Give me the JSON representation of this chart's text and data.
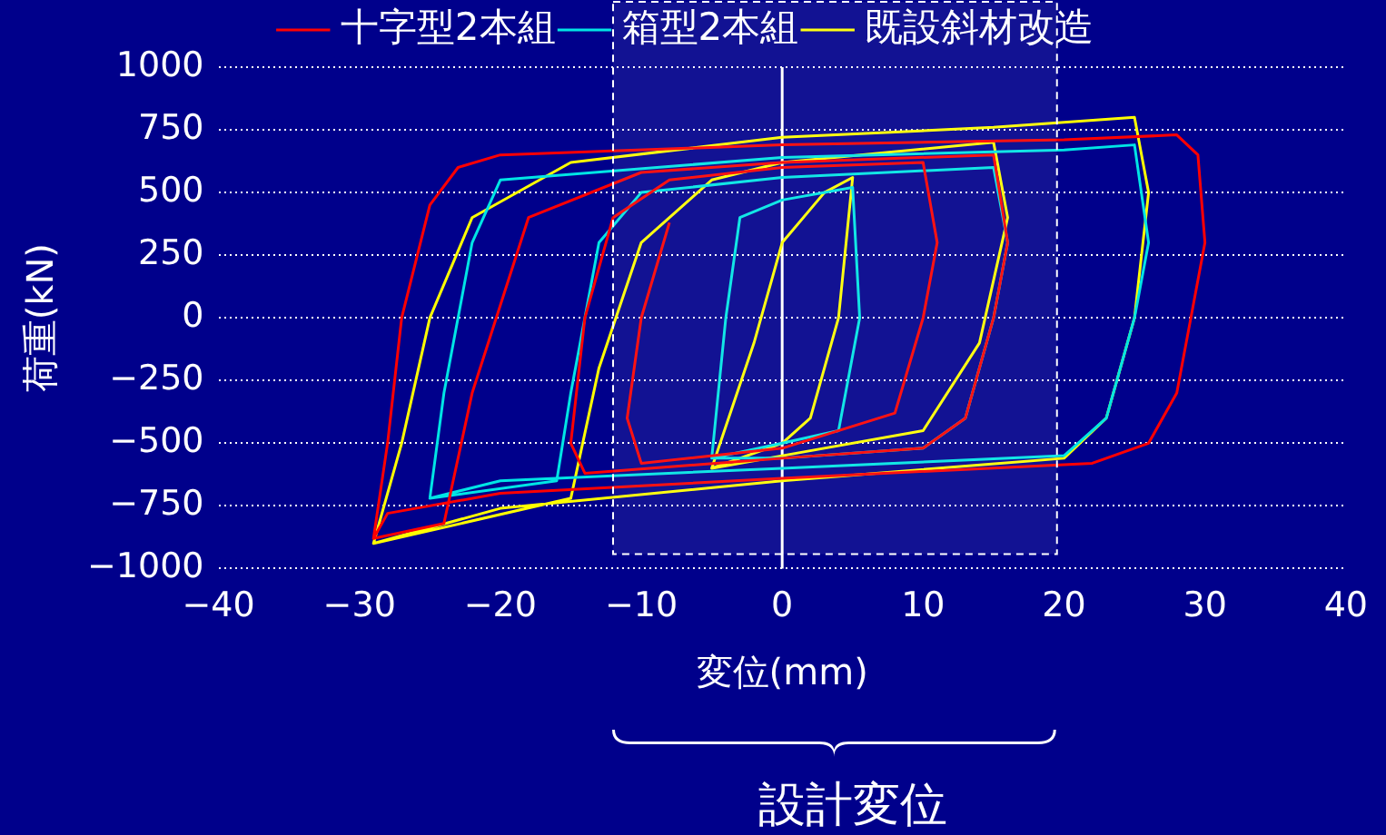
{
  "chart_data": {
    "type": "line",
    "xlabel": "変位(mm)",
    "ylabel": "荷重(kN)",
    "xlim": [
      -40,
      40
    ],
    "xticks": [
      -40,
      -30,
      -20,
      -10,
      0,
      10,
      20,
      30,
      40
    ],
    "ylim": [
      -1000,
      1000
    ],
    "yticks": [
      -1000,
      -750,
      -500,
      -250,
      0,
      250,
      500,
      750,
      1000
    ],
    "grid": "y",
    "legend": "top",
    "marker": "none",
    "line_style": "solid",
    "ref_lines": [
      {
        "axis": "x",
        "value": 0,
        "color": "#ffffff"
      }
    ],
    "bands": [
      {
        "axis": "x",
        "from": -12,
        "to": 19.5,
        "color": "#ffffff"
      }
    ],
    "annotations": [
      "設計変位"
    ],
    "series": [
      {
        "name": "十字型2本組",
        "color": "#ff0000",
        "x": [
          -29,
          -28,
          -27,
          -25,
          -23,
          -20,
          0,
          20,
          28,
          29.5,
          30,
          29,
          28,
          26,
          22,
          0,
          -20,
          -28,
          -29,
          -24,
          -22,
          -18,
          -10,
          0,
          15,
          16,
          15,
          13,
          10,
          0,
          -14,
          -15,
          -14,
          -12,
          -8,
          0,
          10,
          11,
          10,
          8,
          0,
          -10,
          -11,
          -10,
          -8
        ],
        "values": [
          -880,
          -500,
          0,
          450,
          600,
          650,
          690,
          710,
          730,
          650,
          300,
          0,
          -300,
          -500,
          -580,
          -640,
          -700,
          -780,
          -880,
          -820,
          -300,
          400,
          580,
          620,
          650,
          300,
          0,
          -400,
          -520,
          -560,
          -620,
          -500,
          0,
          400,
          550,
          600,
          620,
          300,
          0,
          -380,
          -520,
          -580,
          -400,
          0,
          380
        ]
      },
      {
        "name": "箱型2本組",
        "color": "#00e5e5",
        "x": [
          -25,
          -24,
          -22,
          -20,
          0,
          20,
          25,
          26,
          25,
          23,
          20,
          0,
          -20,
          -25,
          -16,
          -15,
          -13,
          -10,
          0,
          15,
          16,
          15,
          13,
          10,
          0,
          -5,
          -4,
          -3,
          0,
          5,
          5.5,
          4,
          0,
          -5
        ],
        "values": [
          -720,
          -300,
          300,
          550,
          640,
          670,
          690,
          300,
          0,
          -400,
          -550,
          -600,
          -650,
          -720,
          -650,
          -300,
          300,
          500,
          560,
          600,
          300,
          0,
          -400,
          -520,
          -560,
          -560,
          0,
          400,
          470,
          520,
          0,
          -450,
          -500,
          -560
        ]
      },
      {
        "name": "既設斜材改造",
        "color": "#ffff00",
        "x": [
          -29,
          -27,
          -25,
          -22,
          -15,
          0,
          15,
          25,
          26,
          25,
          23,
          20,
          0,
          -20,
          -29,
          -15,
          -13,
          -10,
          -5,
          0,
          15,
          16,
          14,
          10,
          0,
          -5,
          -2,
          0,
          3,
          5,
          4,
          2,
          0,
          -5
        ],
        "values": [
          -900,
          -500,
          0,
          400,
          620,
          720,
          760,
          800,
          500,
          0,
          -400,
          -560,
          -650,
          -760,
          -900,
          -720,
          -200,
          300,
          550,
          620,
          700,
          400,
          -100,
          -450,
          -550,
          -600,
          -100,
          300,
          500,
          560,
          0,
          -400,
          -500,
          -600
        ]
      }
    ]
  }
}
